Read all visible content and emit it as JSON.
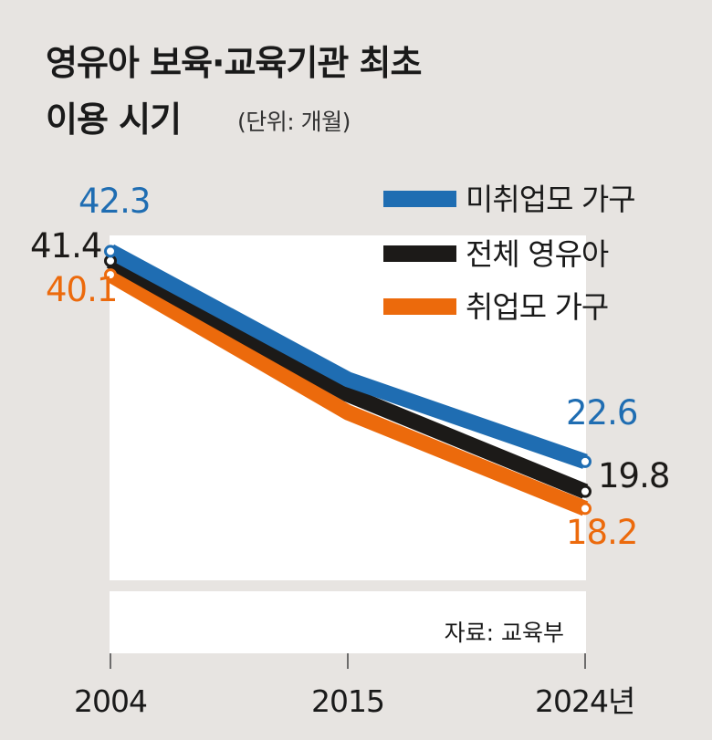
{
  "title_line1": "영유아 보육·교육기관 최초",
  "title_line2": "이용 시기",
  "unit": "(단위: 개월)",
  "source": "자료: 교육부",
  "chart_data": {
    "type": "line",
    "title": "영유아 보육·교육기관 최초 이용 시기",
    "ylabel": "개월",
    "ylim": [
      0,
      45
    ],
    "x": [
      "2004",
      "2015",
      "2024년"
    ],
    "series": [
      {
        "name": "미취업모 가구",
        "color": "#1f6db2",
        "values": [
          42.3,
          null,
          22.6
        ]
      },
      {
        "name": "전체 영유아",
        "color": "#1c1a18",
        "values": [
          41.4,
          null,
          19.8
        ]
      },
      {
        "name": "취업모 가구",
        "color": "#ec6a0c",
        "values": [
          40.1,
          null,
          18.2
        ]
      }
    ],
    "grid": false,
    "legend": "top-right"
  }
}
